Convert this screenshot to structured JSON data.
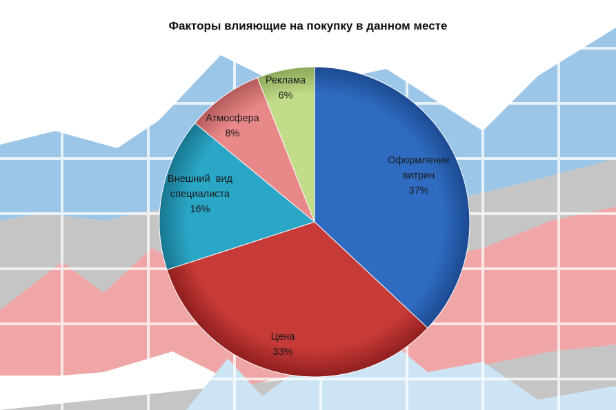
{
  "chart_data": {
    "type": "pie",
    "title": "Факторы влияющие на покупку в данном месте",
    "slices": [
      {
        "label_lines": [
          "Оформление",
          "витрин"
        ],
        "value": 37,
        "value_label": "37%",
        "color": "#2f6cc1",
        "dark": "#1c4a91"
      },
      {
        "label_lines": [
          "Цена"
        ],
        "value": 33,
        "value_label": "33%",
        "color": "#c63a38",
        "dark": "#8f1f1e"
      },
      {
        "label_lines": [
          "Внешний  вид",
          "специалиста"
        ],
        "value": 16,
        "value_label": "16%",
        "color": "#2aa6c6",
        "dark": "#19768f"
      },
      {
        "label_lines": [
          "Атмосфера"
        ],
        "value": 8,
        "value_label": "8%",
        "color": "#e98888",
        "dark": "#b45a5a"
      },
      {
        "label_lines": [
          "Реклама"
        ],
        "value": 6,
        "value_label": "6%",
        "color": "#c3dc8a",
        "dark": "#8ea85a"
      }
    ]
  },
  "background": {
    "colors": {
      "blue": "#8fbfe4",
      "gray": "#bdbdbd",
      "red": "#ee9a9a",
      "light_blue": "#c7e1f4",
      "grid": "#ffffff"
    }
  }
}
